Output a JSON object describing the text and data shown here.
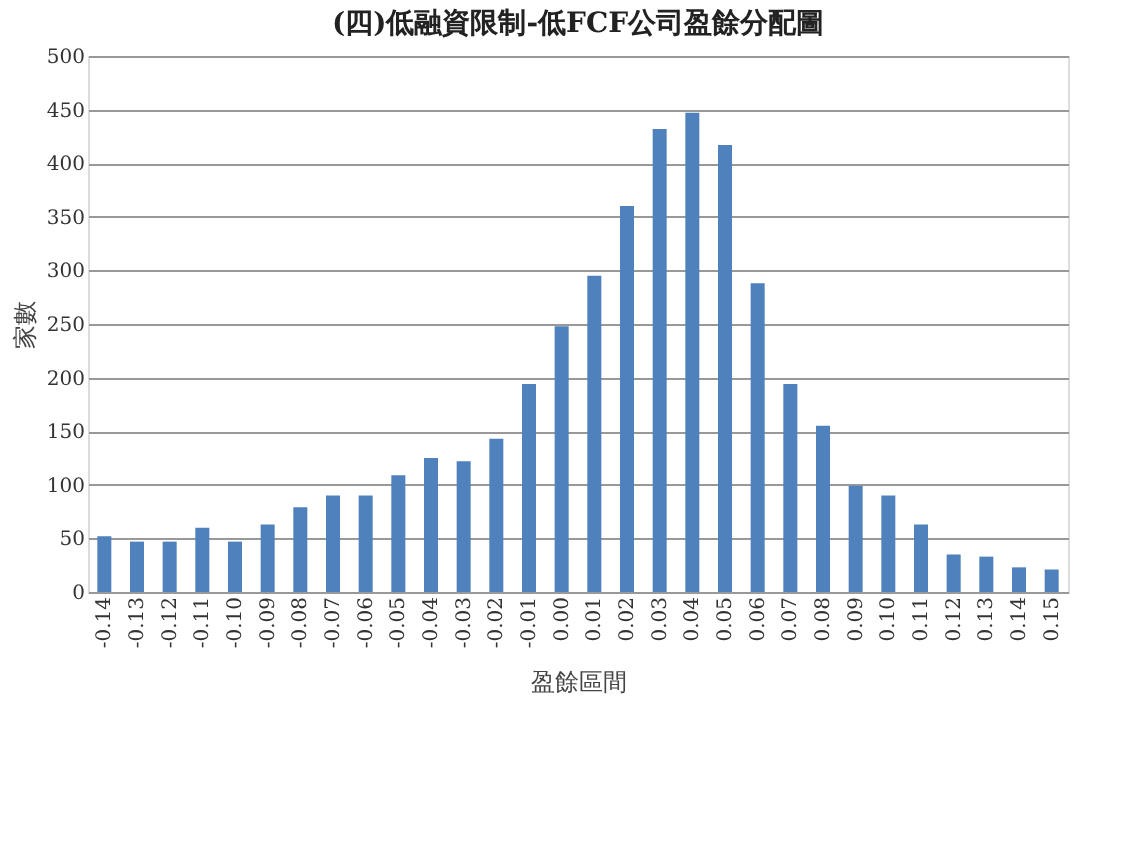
{
  "chart_data": {
    "type": "bar",
    "title": "(四)低融資限制-低FCF公司盈餘分配圖",
    "xlabel": "盈餘區間",
    "ylabel": "家數",
    "categories": [
      "-0.14",
      "-0.13",
      "-0.12",
      "-0.11",
      "-0.10",
      "-0.09",
      "-0.08",
      "-0.07",
      "-0.06",
      "-0.05",
      "-0.04",
      "-0.03",
      "-0.02",
      "-0.01",
      "0.00",
      "0.01",
      "0.02",
      "0.03",
      "0.04",
      "0.05",
      "0.06",
      "0.07",
      "0.08",
      "0.09",
      "0.10",
      "0.11",
      "0.12",
      "0.13",
      "0.14",
      "0.15"
    ],
    "values": [
      52,
      47,
      47,
      60,
      47,
      63,
      79,
      90,
      90,
      109,
      125,
      122,
      143,
      194,
      248,
      295,
      360,
      432,
      447,
      417,
      288,
      194,
      155,
      99,
      90,
      63,
      35,
      33,
      23,
      21
    ],
    "color": "#4f81bd",
    "ylim": [
      0,
      500
    ],
    "yticks": [
      0,
      50,
      100,
      150,
      200,
      250,
      300,
      350,
      400,
      450,
      500
    ],
    "grid": "y"
  }
}
